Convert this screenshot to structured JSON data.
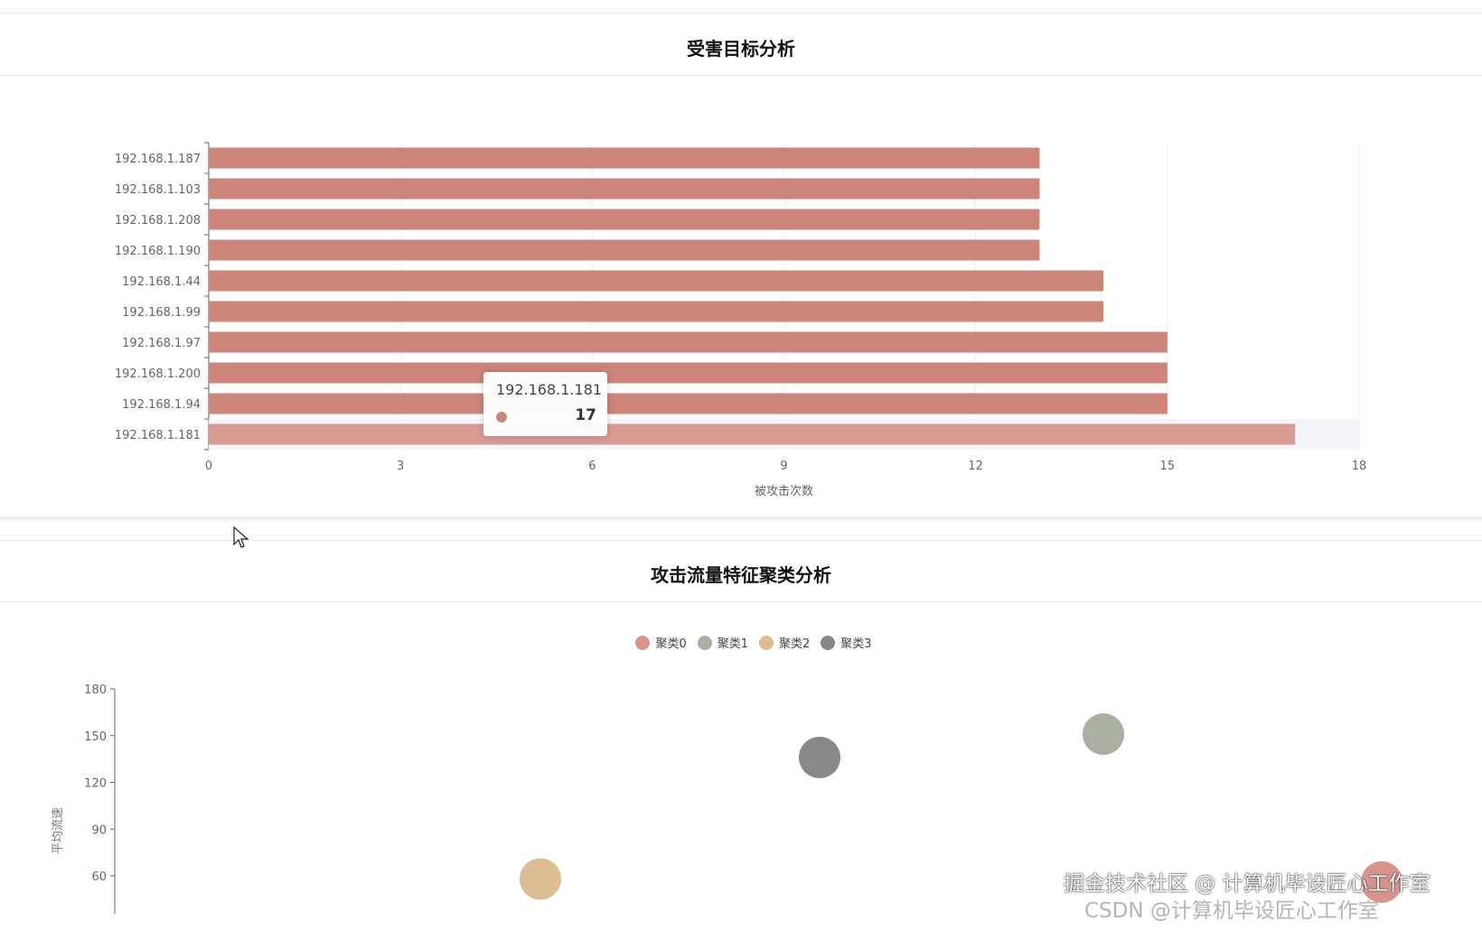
{
  "panels": {
    "victim": {
      "title": "受害目标分析"
    },
    "cluster": {
      "title": "攻击流量特征聚类分析"
    }
  },
  "chart_data": [
    {
      "type": "bar",
      "orientation": "horizontal",
      "categories": [
        "192.168.1.187",
        "192.168.1.103",
        "192.168.1.208",
        "192.168.1.190",
        "192.168.1.44",
        "192.168.1.99",
        "192.168.1.97",
        "192.168.1.200",
        "192.168.1.94",
        "192.168.1.181"
      ],
      "values": [
        13,
        13,
        13,
        13,
        14,
        14,
        15,
        15,
        15,
        17
      ],
      "xlabel": "被攻击次数",
      "xlim": [
        0,
        18
      ],
      "xticks": [
        "0",
        "3",
        "6",
        "9",
        "12",
        "15",
        "18"
      ],
      "grid": true,
      "color": "#cd857a",
      "highlight_index": 9,
      "tooltip": {
        "name": "192.168.1.181",
        "value": "17"
      }
    },
    {
      "type": "scatter",
      "ylabel": "平均流速",
      "yticks": [
        "60",
        "90",
        "120",
        "150",
        "180"
      ],
      "ylim_visible": [
        60,
        180
      ],
      "legend_position": "top-center",
      "series": [
        {
          "name": "聚类0",
          "color": "#d9938d",
          "y": 56
        },
        {
          "name": "聚类1",
          "color": "#a9b0a1",
          "y": 151
        },
        {
          "name": "聚类2",
          "color": "#dcbd94",
          "y": 58
        },
        {
          "name": "聚类3",
          "color": "#888888",
          "y": 136
        }
      ]
    }
  ],
  "watermark": {
    "line1": "掘金技术社区 @ 计算机毕设匠心工作室",
    "line2": "CSDN @计算机毕设匠心工作室"
  }
}
